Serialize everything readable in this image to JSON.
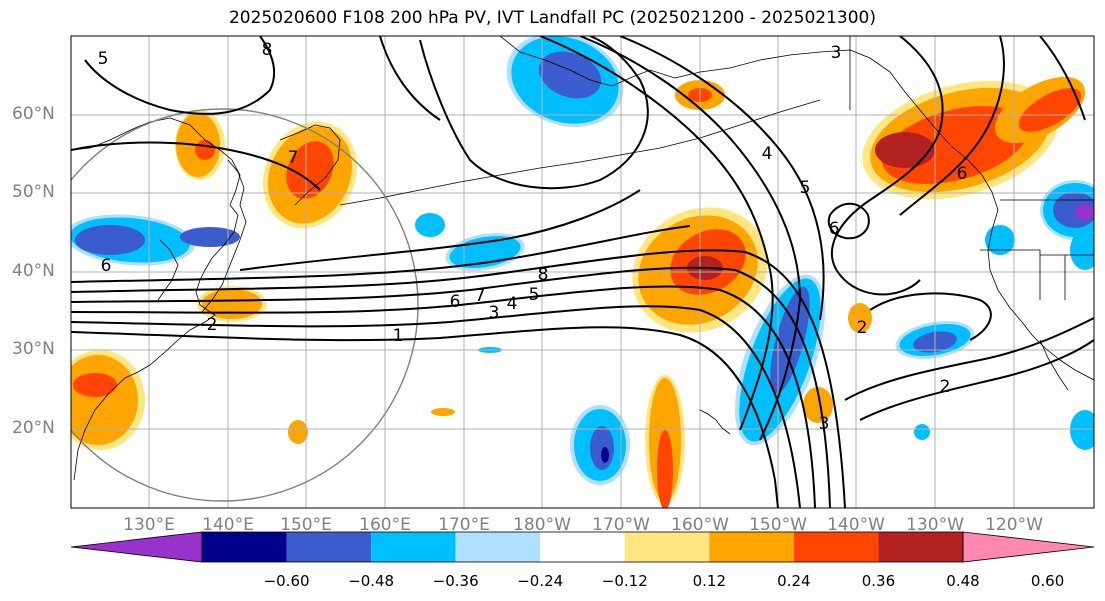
{
  "title": "2025020600 F108 200 hPa PV, IVT Landfall PC (2025021200 - 2025021300)",
  "lat_labels": [
    "60°N",
    "50°N",
    "40°N",
    "30°N",
    "20°N"
  ],
  "lon_labels": [
    "130°E",
    "140°E",
    "150°E",
    "160°E",
    "170°E",
    "180°W",
    "170°W",
    "160°W",
    "150°W",
    "140°W",
    "130°W",
    "120°W"
  ],
  "contour_labels": [
    "5",
    "8",
    "3",
    "7",
    "4",
    "5",
    "6",
    "6",
    "8",
    "7",
    "6",
    "5",
    "4",
    "3",
    "2",
    "1",
    "2",
    "3",
    "2",
    "6"
  ],
  "colorbar": {
    "tick_labels": [
      "−0.60",
      "−0.48",
      "−0.36",
      "−0.24",
      "−0.12",
      "0.12",
      "0.24",
      "0.36",
      "0.48",
      "0.60"
    ],
    "colors": [
      "#9932cc",
      "#00008b",
      "#3a5ccc",
      "#00bfff",
      "#b0e0ff",
      "#ffffff",
      "#ffe680",
      "#ffa500",
      "#ff4500",
      "#b22222",
      "#ff88b0"
    ]
  },
  "colors": {
    "blue_dark": "#00008b",
    "blue_mid": "#3a5ccc",
    "blue_light": "#00bfff",
    "blue_pale": "#b0e0ff",
    "yellow": "#ffe680",
    "orange": "#ffa500",
    "red_orange": "#ff4500",
    "dark_red": "#b22222",
    "purple": "#9932cc",
    "grid": "#b0b0b0",
    "coast": "#000000"
  }
}
